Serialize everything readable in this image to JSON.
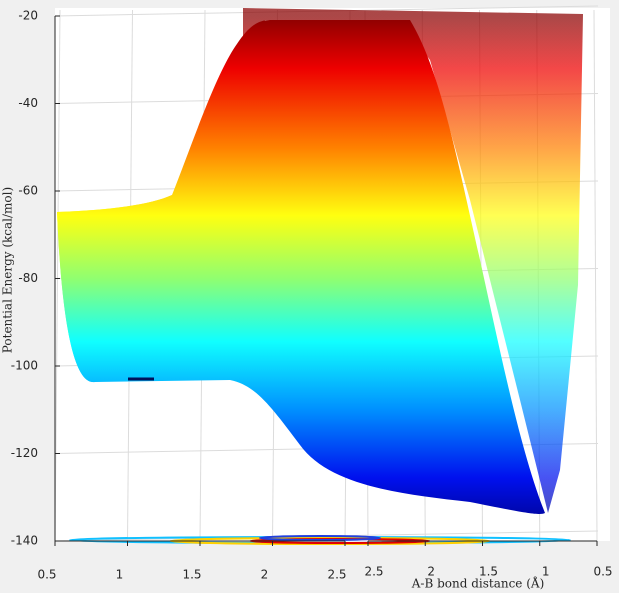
{
  "chart_data": {
    "type": "surface",
    "ylabel": "Potential Energy (kcal/mol)",
    "xlabel": "A-B bond distance (Å)",
    "ylim": [
      -140,
      -20
    ],
    "yticks": [
      -140,
      -120,
      -100,
      -80,
      -60,
      -40,
      -20
    ],
    "xlim": [
      0.5,
      2.5
    ],
    "xticks": [
      0.5,
      1,
      1.5,
      2,
      2.5
    ],
    "x2lim": [
      2.5,
      0.5
    ],
    "x2ticks": [
      2.5,
      2,
      1.5,
      1,
      0.5
    ],
    "grid": true
  }
}
